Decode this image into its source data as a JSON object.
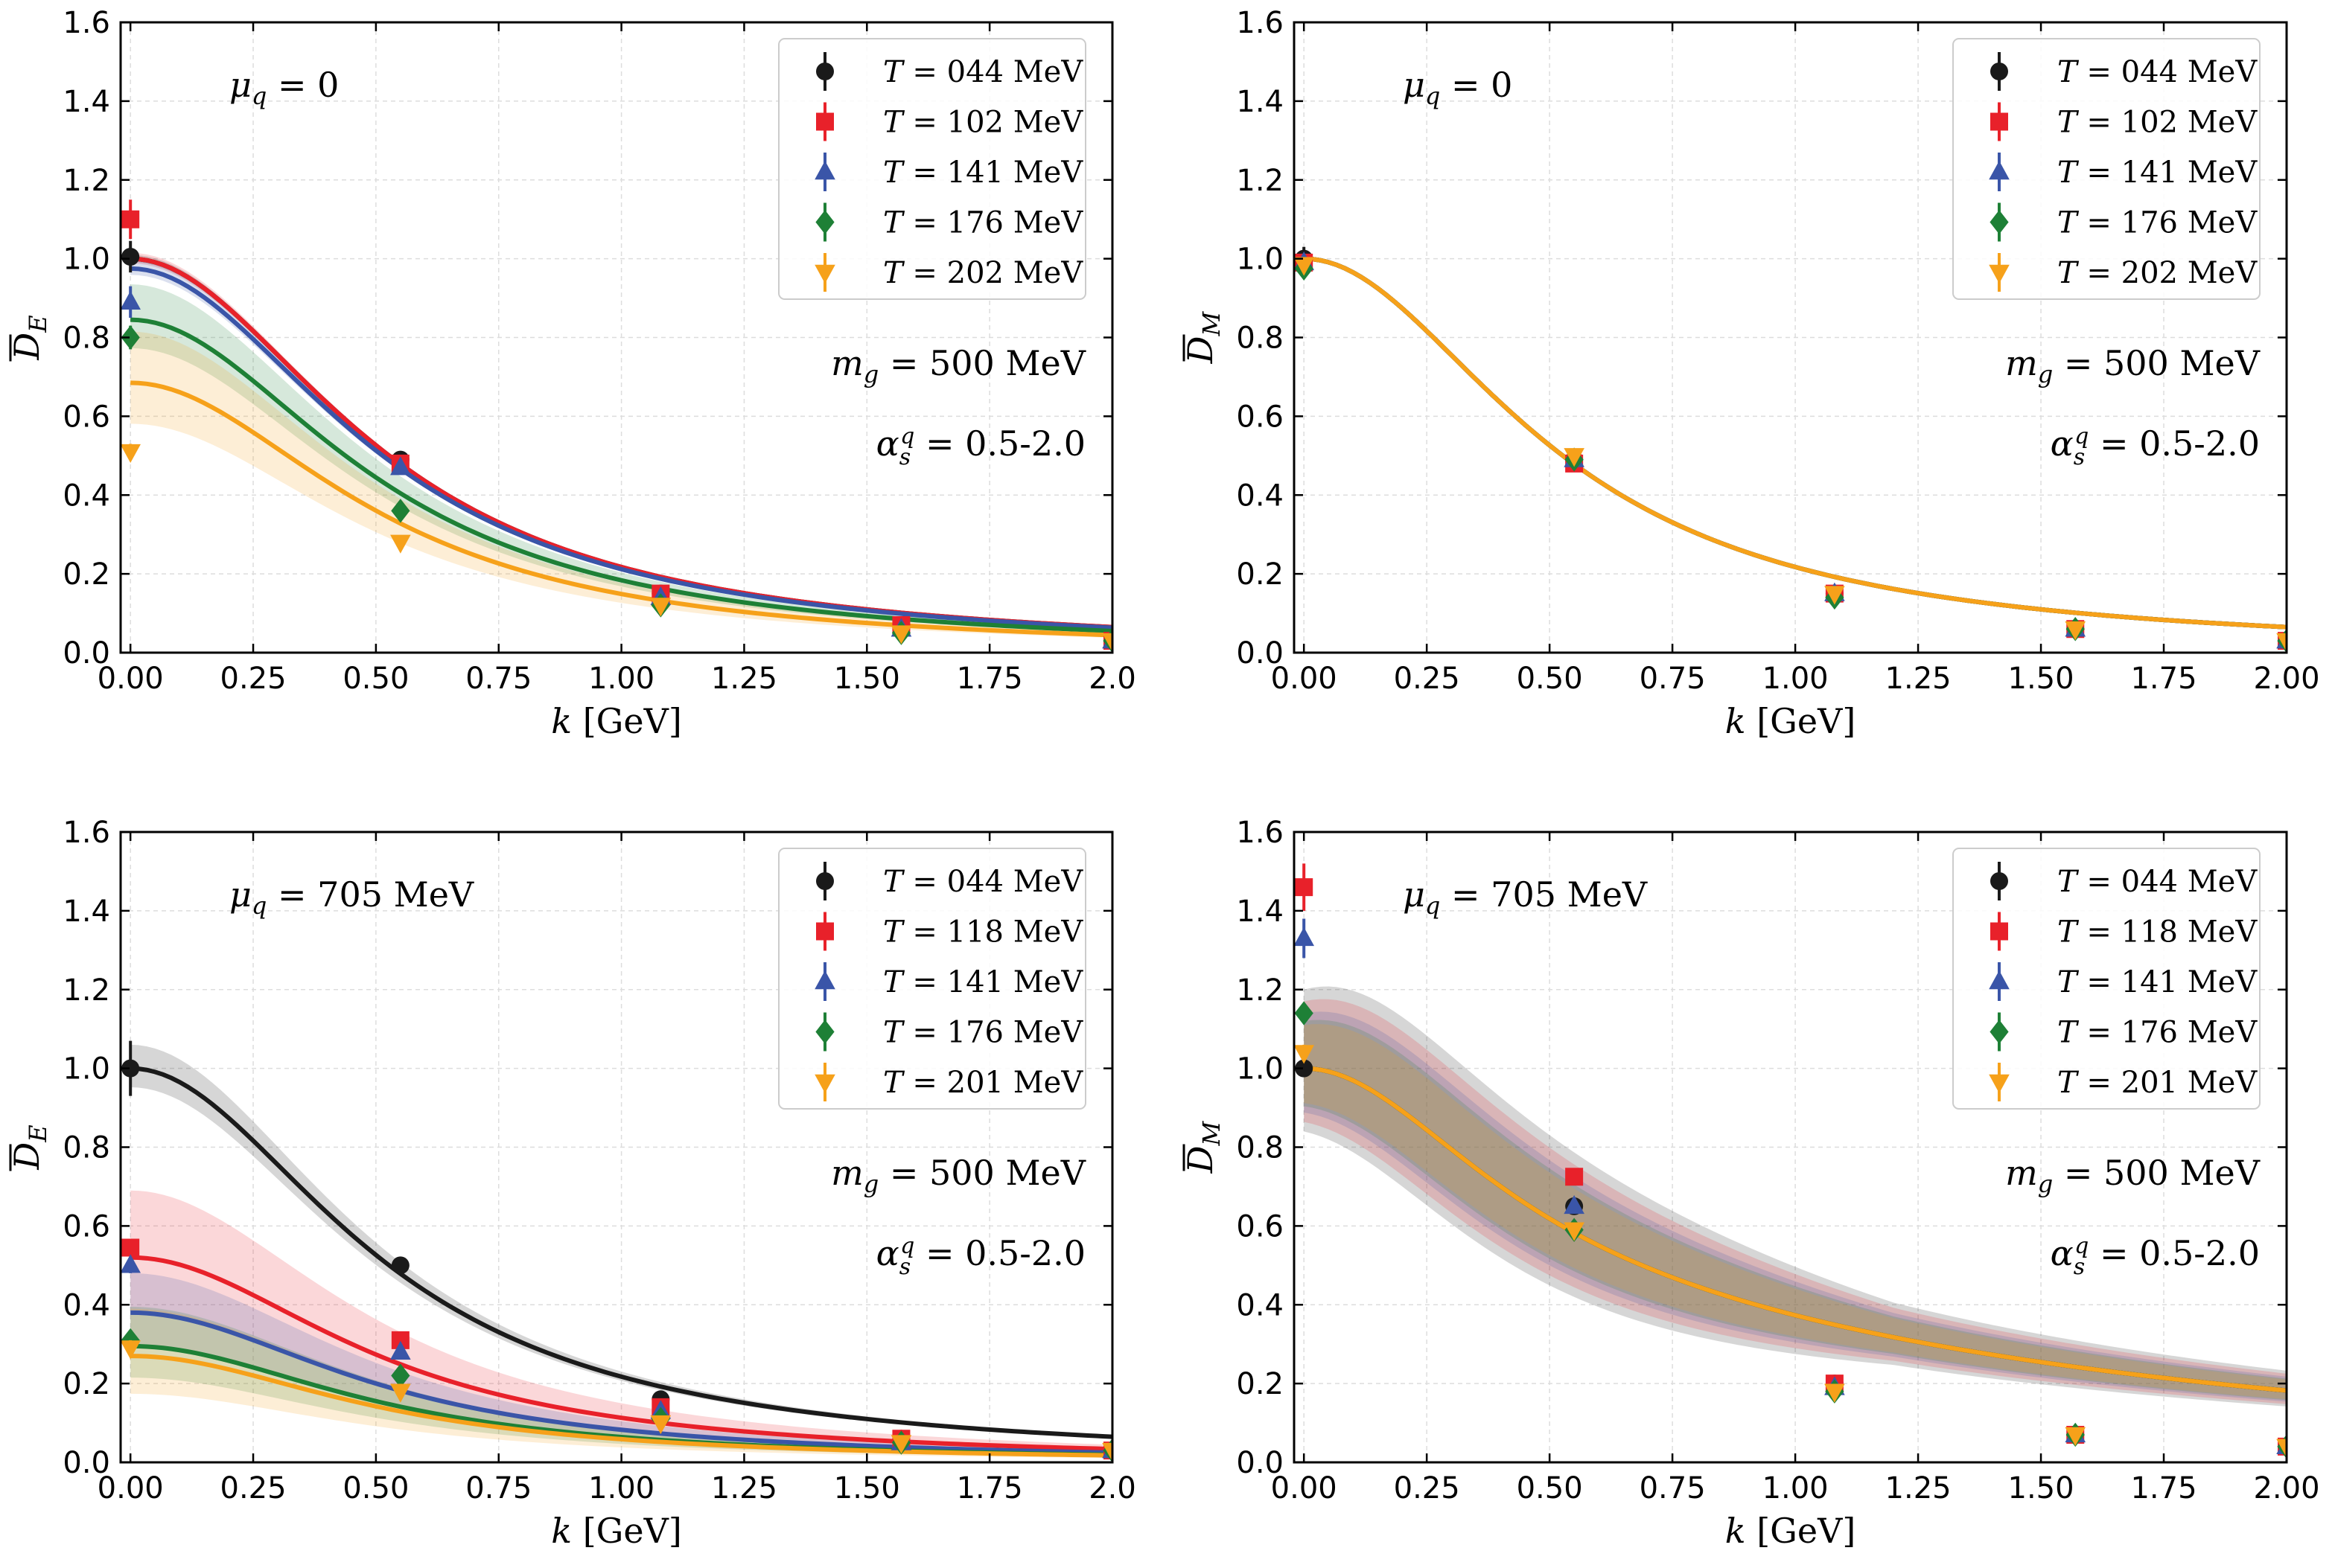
{
  "figure": {
    "description_hidden": ""
  },
  "chart_data": [
    {
      "type": "scatter",
      "panel": "top-left",
      "xlabel": "k [GeV]",
      "ylabel": "D_E",
      "xlim": [
        -0.02,
        2.0
      ],
      "ylim": [
        0.0,
        1.6
      ],
      "xticks": [
        "0.00",
        "0.25",
        "0.50",
        "0.75",
        "1.00",
        "1.25",
        "1.50",
        "1.75",
        "2.0"
      ],
      "xtick_values": [
        0,
        0.25,
        0.5,
        0.75,
        1.0,
        1.25,
        1.5,
        1.75,
        2.0
      ],
      "yticks": [
        "0.0",
        "0.2",
        "0.4",
        "0.6",
        "0.8",
        "1.0",
        "1.2",
        "1.4",
        "1.6"
      ],
      "ytick_values": [
        0,
        0.2,
        0.4,
        0.6,
        0.8,
        1.0,
        1.2,
        1.4,
        1.6
      ],
      "grid": true,
      "legend_position": "top-right",
      "annotations": {
        "mu": "μq = 0",
        "mg": "mg = 500 MeV",
        "alpha": "αsq = 0.5-2.0"
      },
      "series": [
        {
          "name": "T = 044 MeV",
          "color": "#1a1a1a",
          "marker": "circle",
          "x": [
            0.0,
            0.55,
            1.08,
            1.57,
            2.0
          ],
          "y": [
            1.005,
            0.49,
            0.15,
            0.07,
            0.03
          ],
          "yerr": [
            0.04,
            0.01,
            0.01,
            0.005,
            0.005
          ],
          "fit_A": 1.0,
          "band": 0.01
        },
        {
          "name": "T = 102 MeV",
          "color": "#e8212a",
          "marker": "square",
          "x": [
            0.0,
            0.55,
            1.08,
            1.57,
            2.0
          ],
          "y": [
            1.1,
            0.48,
            0.15,
            0.07,
            0.03
          ],
          "yerr": [
            0.05,
            0.01,
            0.01,
            0.005,
            0.005
          ],
          "fit_A": 1.0,
          "band": 0.015
        },
        {
          "name": "T = 141 MeV",
          "color": "#3a55a8",
          "marker": "triangle-up",
          "x": [
            0.0,
            0.55,
            1.08,
            1.57,
            2.0
          ],
          "y": [
            0.89,
            0.47,
            0.14,
            0.06,
            0.03
          ],
          "yerr": [
            0.04,
            0.01,
            0.01,
            0.005,
            0.005
          ],
          "fit_A": 0.975,
          "band": 0.02
        },
        {
          "name": "T = 176 MeV",
          "color": "#1e8036",
          "marker": "diamond",
          "x": [
            0.0,
            0.55,
            1.08,
            1.57,
            2.0
          ],
          "y": [
            0.8,
            0.36,
            0.12,
            0.05,
            0.03
          ],
          "yerr": [
            0.03,
            0.01,
            0.01,
            0.005,
            0.005
          ],
          "fit_A": 0.845,
          "band": 0.09
        },
        {
          "name": "T = 202 MeV",
          "color": "#f6a11a",
          "marker": "triangle-down",
          "x": [
            0.0,
            0.55,
            1.08,
            1.57,
            2.0
          ],
          "y": [
            0.51,
            0.28,
            0.12,
            0.05,
            0.03
          ],
          "yerr": [
            0.02,
            0.01,
            0.01,
            0.005,
            0.005
          ],
          "fit_A": 0.685,
          "band": 0.13
        }
      ]
    },
    {
      "type": "scatter",
      "panel": "top-right",
      "xlabel": "k [GeV]",
      "ylabel": "D_M",
      "xlim": [
        -0.02,
        2.0
      ],
      "ylim": [
        0.0,
        1.6
      ],
      "xticks": [
        "0.00",
        "0.25",
        "0.50",
        "0.75",
        "1.00",
        "1.25",
        "1.50",
        "1.75",
        "2.00"
      ],
      "xtick_values": [
        0,
        0.25,
        0.5,
        0.75,
        1.0,
        1.25,
        1.5,
        1.75,
        2.0
      ],
      "yticks": [
        "0.0",
        "0.2",
        "0.4",
        "0.6",
        "0.8",
        "1.0",
        "1.2",
        "1.4",
        "1.6"
      ],
      "ytick_values": [
        0,
        0.2,
        0.4,
        0.6,
        0.8,
        1.0,
        1.2,
        1.4,
        1.6
      ],
      "grid": true,
      "legend_position": "top-right",
      "annotations": {
        "mu": "μq = 0",
        "mg": "mg = 500 MeV",
        "alpha": "αsq = 0.5-2.0"
      },
      "series": [
        {
          "name": "T = 044 MeV",
          "color": "#1a1a1a",
          "marker": "circle",
          "x": [
            0.0,
            0.55,
            1.08,
            1.57,
            2.0
          ],
          "y": [
            1.0,
            0.49,
            0.15,
            0.06,
            0.03
          ],
          "yerr": [
            0.03,
            0.01,
            0.01,
            0.005,
            0.005
          ],
          "fit_A": 1.0,
          "band": 0.003
        },
        {
          "name": "T = 102 MeV",
          "color": "#e8212a",
          "marker": "square",
          "x": [
            0.0,
            0.55,
            1.08,
            1.57,
            2.0
          ],
          "y": [
            0.99,
            0.48,
            0.15,
            0.06,
            0.03
          ],
          "yerr": [
            0.01,
            0.01,
            0.01,
            0.005,
            0.005
          ],
          "fit_A": 1.0,
          "band": 0.003
        },
        {
          "name": "T = 141 MeV",
          "color": "#3a55a8",
          "marker": "triangle-up",
          "x": [
            0.0,
            0.55,
            1.08,
            1.57,
            2.0
          ],
          "y": [
            0.99,
            0.49,
            0.15,
            0.06,
            0.03
          ],
          "yerr": [
            0.01,
            0.01,
            0.01,
            0.005,
            0.005
          ],
          "fit_A": 1.0,
          "band": 0.003
        },
        {
          "name": "T = 176 MeV",
          "color": "#1e8036",
          "marker": "diamond",
          "x": [
            0.0,
            0.55,
            1.08,
            1.57,
            2.0
          ],
          "y": [
            0.975,
            0.49,
            0.14,
            0.06,
            0.03
          ],
          "yerr": [
            0.01,
            0.01,
            0.01,
            0.005,
            0.005
          ],
          "fit_A": 1.0,
          "band": 0.003
        },
        {
          "name": "T = 202 MeV",
          "color": "#f6a11a",
          "marker": "triangle-down",
          "x": [
            0.0,
            0.55,
            1.08,
            1.57,
            2.0
          ],
          "y": [
            0.985,
            0.5,
            0.15,
            0.06,
            0.03
          ],
          "yerr": [
            0.01,
            0.01,
            0.01,
            0.005,
            0.005
          ],
          "fit_A": 1.0,
          "band": 0.003
        }
      ]
    },
    {
      "type": "scatter",
      "panel": "bottom-left",
      "xlabel": "k [GeV]",
      "ylabel": "D_E",
      "xlim": [
        -0.02,
        2.0
      ],
      "ylim": [
        0.0,
        1.6
      ],
      "xticks": [
        "0.00",
        "0.25",
        "0.50",
        "0.75",
        "1.00",
        "1.25",
        "1.50",
        "1.75",
        "2.0"
      ],
      "xtick_values": [
        0,
        0.25,
        0.5,
        0.75,
        1.0,
        1.25,
        1.5,
        1.75,
        2.0
      ],
      "yticks": [
        "0.0",
        "0.2",
        "0.4",
        "0.6",
        "0.8",
        "1.0",
        "1.2",
        "1.4",
        "1.6"
      ],
      "ytick_values": [
        0,
        0.2,
        0.4,
        0.6,
        0.8,
        1.0,
        1.2,
        1.4,
        1.6
      ],
      "grid": true,
      "legend_position": "top-right",
      "annotations": {
        "mu": "μq = 705 MeV",
        "mg": "mg = 500 MeV",
        "alpha": "αsq = 0.5-2.0"
      },
      "series": [
        {
          "name": "T = 044 MeV",
          "color": "#1a1a1a",
          "marker": "circle",
          "x": [
            0.0,
            0.55,
            1.08,
            1.57,
            2.0
          ],
          "y": [
            1.0,
            0.5,
            0.16,
            0.06,
            0.03
          ],
          "yerr": [
            0.07,
            0.01,
            0.01,
            0.005,
            0.005
          ],
          "fit_A": 1.0,
          "band": 0.06
        },
        {
          "name": "T = 118 MeV",
          "color": "#e8212a",
          "marker": "square",
          "x": [
            0.0,
            0.55,
            1.08,
            1.57,
            2.0
          ],
          "y": [
            0.545,
            0.31,
            0.14,
            0.06,
            0.03
          ],
          "yerr": [
            0.02,
            0.01,
            0.01,
            0.005,
            0.005
          ],
          "fit_A": 0.52,
          "band": 0.17
        },
        {
          "name": "T = 141 MeV",
          "color": "#3a55a8",
          "marker": "triangle-up",
          "x": [
            0.0,
            0.55,
            1.08,
            1.57,
            2.0
          ],
          "y": [
            0.5,
            0.28,
            0.13,
            0.05,
            0.03
          ],
          "yerr": [
            0.02,
            0.01,
            0.01,
            0.005,
            0.005
          ],
          "fit_A": 0.38,
          "band": 0.1
        },
        {
          "name": "T = 176 MeV",
          "color": "#1e8036",
          "marker": "diamond",
          "x": [
            0.0,
            0.55,
            1.08,
            1.57,
            2.0
          ],
          "y": [
            0.31,
            0.22,
            0.11,
            0.05,
            0.03
          ],
          "yerr": [
            0.02,
            0.01,
            0.01,
            0.005,
            0.005
          ],
          "fit_A": 0.295,
          "band": 0.1
        },
        {
          "name": "T = 201 MeV",
          "color": "#f6a11a",
          "marker": "triangle-down",
          "x": [
            0.0,
            0.55,
            1.08,
            1.57,
            2.0
          ],
          "y": [
            0.29,
            0.18,
            0.1,
            0.05,
            0.03
          ],
          "yerr": [
            0.02,
            0.01,
            0.01,
            0.005,
            0.005
          ],
          "fit_A": 0.27,
          "band": 0.12
        }
      ]
    },
    {
      "type": "scatter",
      "panel": "bottom-right",
      "xlabel": "k [GeV]",
      "ylabel": "D_M",
      "xlim": [
        -0.02,
        2.0
      ],
      "ylim": [
        0.0,
        1.6
      ],
      "xticks": [
        "0.00",
        "0.25",
        "0.50",
        "0.75",
        "1.00",
        "1.25",
        "1.50",
        "1.75",
        "2.00"
      ],
      "xtick_values": [
        0,
        0.25,
        0.5,
        0.75,
        1.0,
        1.25,
        1.5,
        1.75,
        2.0
      ],
      "yticks": [
        "0.0",
        "0.2",
        "0.4",
        "0.6",
        "0.8",
        "1.0",
        "1.2",
        "1.4",
        "1.6"
      ],
      "ytick_values": [
        0,
        0.2,
        0.4,
        0.6,
        0.8,
        1.0,
        1.2,
        1.4,
        1.6
      ],
      "grid": true,
      "legend_position": "top-right",
      "annotations": {
        "mu": "μq = 705 MeV",
        "mg": "mg = 500 MeV",
        "alpha": "αsq = 0.5-2.0"
      },
      "series": [
        {
          "name": "T = 044 MeV",
          "color": "#1a1a1a",
          "marker": "circle",
          "x": [
            0.0,
            0.55,
            1.08,
            1.57,
            2.0
          ],
          "y": [
            1.0,
            0.65,
            0.2,
            0.07,
            0.04
          ],
          "yerr": [
            0.02,
            0.01,
            0.01,
            0.005,
            0.005
          ],
          "fit_A": 1.0,
          "band": 0.2
        },
        {
          "name": "T = 118 MeV",
          "color": "#e8212a",
          "marker": "square",
          "x": [
            0.0,
            0.55,
            1.08,
            1.57,
            2.0
          ],
          "y": [
            1.46,
            0.725,
            0.2,
            0.07,
            0.04
          ],
          "yerr": [
            0.06,
            0.01,
            0.01,
            0.005,
            0.005
          ],
          "fit_A": 1.0,
          "band": 0.17
        },
        {
          "name": "T = 141 MeV",
          "color": "#3a55a8",
          "marker": "triangle-up",
          "x": [
            0.0,
            0.55,
            1.08,
            1.57,
            2.0
          ],
          "y": [
            1.33,
            0.65,
            0.19,
            0.07,
            0.04
          ],
          "yerr": [
            0.05,
            0.01,
            0.01,
            0.005,
            0.005
          ],
          "fit_A": 1.0,
          "band": 0.14
        },
        {
          "name": "T = 176 MeV",
          "color": "#1e8036",
          "marker": "diamond",
          "x": [
            0.0,
            0.55,
            1.08,
            1.57,
            2.0
          ],
          "y": [
            1.14,
            0.59,
            0.18,
            0.07,
            0.04
          ],
          "yerr": [
            0.02,
            0.01,
            0.01,
            0.005,
            0.005
          ],
          "fit_A": 1.0,
          "band": 0.12
        },
        {
          "name": "T = 201 MeV",
          "color": "#f6a11a",
          "marker": "triangle-down",
          "x": [
            0.0,
            0.55,
            1.08,
            1.57,
            2.0
          ],
          "y": [
            1.04,
            0.59,
            0.18,
            0.07,
            0.04
          ],
          "yerr": [
            0.02,
            0.01,
            0.01,
            0.005,
            0.005
          ],
          "fit_A": 1.0,
          "band": 0.11
        }
      ]
    }
  ]
}
